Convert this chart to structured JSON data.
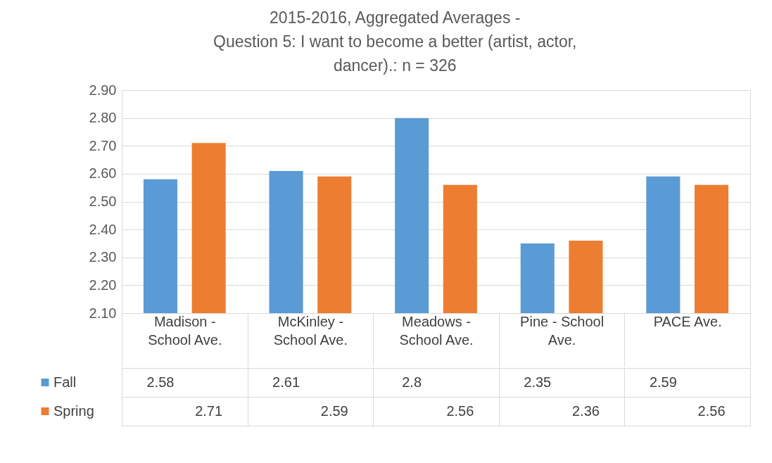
{
  "chart_data": {
    "type": "bar",
    "title": "2015-2016, Aggregated Averages -\nQuestion 5: I want to become a better (artist, actor,\ndancer).: n = 326",
    "categories": [
      "Madison - School Ave.",
      "McKinley - School Ave.",
      "Meadows - School Ave.",
      "Pine - School Ave.",
      "PACE Ave."
    ],
    "series": [
      {
        "name": "Fall",
        "color": "#5b9bd5",
        "values": [
          2.58,
          2.61,
          2.8,
          2.35,
          2.59
        ]
      },
      {
        "name": "Spring",
        "color": "#ed7d31",
        "values": [
          2.71,
          2.59,
          2.56,
          2.36,
          2.56
        ]
      }
    ],
    "ylim": [
      2.1,
      2.9
    ],
    "yticks": [
      {
        "value": 2.1,
        "label": "2.10"
      },
      {
        "value": 2.2,
        "label": "2.20"
      },
      {
        "value": 2.3,
        "label": "2.30"
      },
      {
        "value": 2.4,
        "label": "2.40"
      },
      {
        "value": 2.5,
        "label": "2.50"
      },
      {
        "value": 2.6,
        "label": "2.60"
      },
      {
        "value": 2.7,
        "label": "2.70"
      },
      {
        "value": 2.8,
        "label": "2.80"
      },
      {
        "value": 2.9,
        "label": "2.90"
      }
    ],
    "grid": "y",
    "legend": "bottom",
    "data_labels": true
  }
}
